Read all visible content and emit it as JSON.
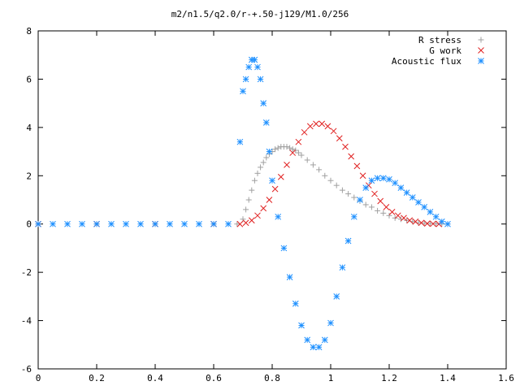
{
  "chart_data": {
    "type": "scatter",
    "title": "m2/n1.5/q2.0/r-+.50-j129/M1.0/256",
    "xlabel": "",
    "ylabel": "",
    "xlim": [
      0,
      1.6
    ],
    "ylim": [
      -6,
      8
    ],
    "xticks": [
      "0",
      "0.2",
      "0.4",
      "0.6",
      "0.8",
      "1",
      "1.2",
      "1.4",
      "1.6"
    ],
    "yticks": [
      "-6",
      "-4",
      "-2",
      "0",
      "2",
      "4",
      "6",
      "8"
    ],
    "grid": false,
    "legend_position": "top-right",
    "series": [
      {
        "name": "R stress",
        "marker": "plus",
        "color": "#a0a0a0",
        "x": [
          0.0,
          0.2,
          0.4,
          0.6,
          0.68,
          0.7,
          0.71,
          0.72,
          0.73,
          0.74,
          0.75,
          0.76,
          0.77,
          0.78,
          0.79,
          0.8,
          0.81,
          0.82,
          0.83,
          0.84,
          0.85,
          0.86,
          0.87,
          0.88,
          0.89,
          0.9,
          0.92,
          0.94,
          0.96,
          0.98,
          1.0,
          1.02,
          1.04,
          1.06,
          1.08,
          1.1,
          1.12,
          1.14,
          1.16,
          1.18,
          1.2,
          1.22,
          1.24,
          1.26,
          1.28,
          1.3,
          1.32,
          1.34,
          1.36,
          1.38,
          1.4
        ],
        "y": [
          0,
          0,
          0,
          0,
          0,
          0.2,
          0.6,
          1.0,
          1.4,
          1.8,
          2.1,
          2.35,
          2.55,
          2.75,
          2.9,
          3.0,
          3.1,
          3.15,
          3.2,
          3.2,
          3.2,
          3.15,
          3.1,
          3.05,
          2.95,
          2.85,
          2.65,
          2.45,
          2.25,
          2.0,
          1.8,
          1.6,
          1.4,
          1.25,
          1.1,
          0.95,
          0.8,
          0.7,
          0.55,
          0.45,
          0.35,
          0.25,
          0.2,
          0.15,
          0.1,
          0.05,
          0.03,
          0.02,
          0.01,
          0.0,
          0.0
        ]
      },
      {
        "name": "G work",
        "marker": "cross",
        "color": "#e02020",
        "x": [
          0.0,
          0.2,
          0.4,
          0.6,
          0.69,
          0.71,
          0.73,
          0.75,
          0.77,
          0.79,
          0.81,
          0.83,
          0.85,
          0.87,
          0.89,
          0.91,
          0.93,
          0.95,
          0.97,
          0.99,
          1.01,
          1.03,
          1.05,
          1.07,
          1.09,
          1.11,
          1.13,
          1.15,
          1.17,
          1.19,
          1.21,
          1.23,
          1.25,
          1.27,
          1.29,
          1.31,
          1.33,
          1.35,
          1.37
        ],
        "y": [
          0,
          0,
          0,
          0,
          0,
          0.05,
          0.15,
          0.35,
          0.65,
          1.0,
          1.45,
          1.95,
          2.45,
          2.95,
          3.4,
          3.8,
          4.05,
          4.15,
          4.15,
          4.05,
          3.85,
          3.55,
          3.2,
          2.8,
          2.4,
          2.0,
          1.6,
          1.25,
          0.95,
          0.7,
          0.5,
          0.35,
          0.25,
          0.15,
          0.1,
          0.05,
          0.02,
          0.01,
          0.0
        ]
      },
      {
        "name": "Acoustic flux",
        "marker": "star",
        "color": "#1e90ff",
        "x": [
          0.0,
          0.05,
          0.1,
          0.15,
          0.2,
          0.25,
          0.3,
          0.35,
          0.4,
          0.45,
          0.5,
          0.55,
          0.6,
          0.65,
          0.69,
          0.7,
          0.71,
          0.72,
          0.73,
          0.74,
          0.75,
          0.76,
          0.77,
          0.78,
          0.79,
          0.8,
          0.82,
          0.84,
          0.86,
          0.88,
          0.9,
          0.92,
          0.94,
          0.96,
          0.98,
          1.0,
          1.02,
          1.04,
          1.06,
          1.08,
          1.1,
          1.12,
          1.14,
          1.16,
          1.18,
          1.2,
          1.22,
          1.24,
          1.26,
          1.28,
          1.3,
          1.32,
          1.34,
          1.36,
          1.38,
          1.4
        ],
        "y": [
          0,
          0,
          0,
          0,
          0,
          0,
          0,
          0,
          0,
          0,
          0,
          0,
          0,
          0,
          3.4,
          5.5,
          6.0,
          6.5,
          6.8,
          6.8,
          6.5,
          6.0,
          5.0,
          4.2,
          3.0,
          1.8,
          0.3,
          -1.0,
          -2.2,
          -3.3,
          -4.2,
          -4.8,
          -5.1,
          -5.1,
          -4.8,
          -4.1,
          -3.0,
          -1.8,
          -0.7,
          0.3,
          1.0,
          1.5,
          1.8,
          1.9,
          1.9,
          1.85,
          1.7,
          1.5,
          1.3,
          1.1,
          0.9,
          0.7,
          0.5,
          0.3,
          0.1,
          0.0
        ]
      }
    ]
  }
}
